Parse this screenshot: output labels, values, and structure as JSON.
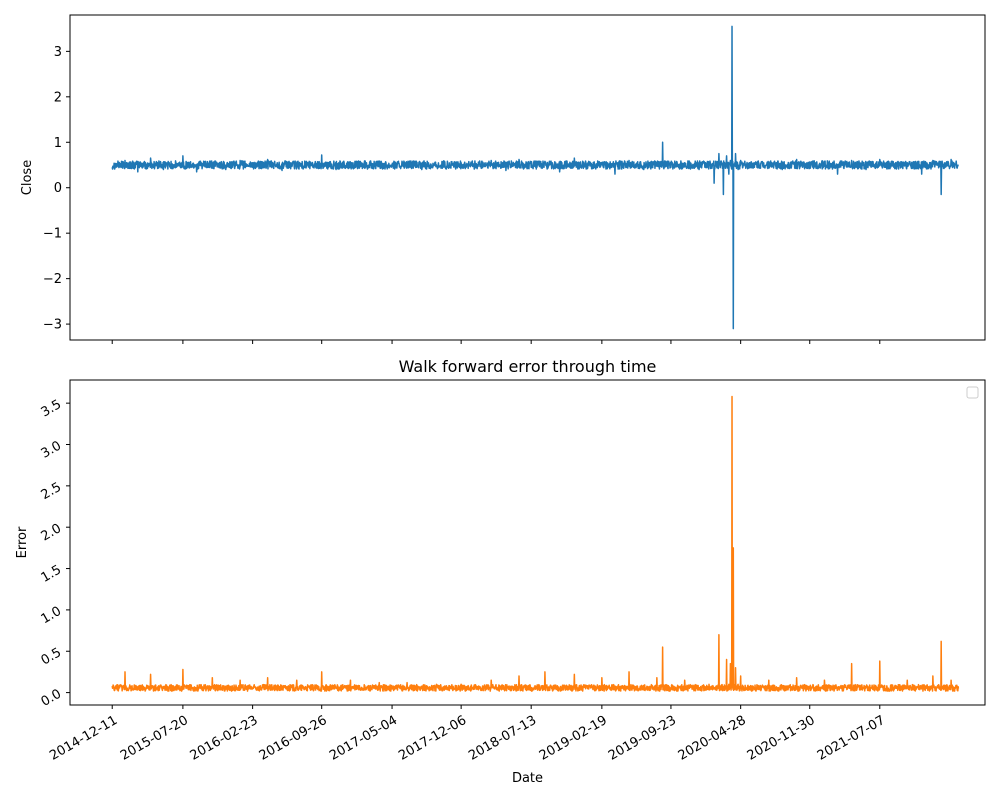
{
  "chart_data": [
    {
      "type": "line",
      "title": "",
      "xlabel": "",
      "ylabel": "Close",
      "ylim": [
        -3.35,
        3.8
      ],
      "yticks": [
        -3,
        -2,
        -1,
        0,
        1,
        2,
        3
      ],
      "xlim": [
        "2014-08-01",
        "2022-06-01"
      ],
      "xticks": [
        "2014-12-11",
        "2015-07-20",
        "2016-02-23",
        "2016-09-26",
        "2017-05-04",
        "2017-12-06",
        "2018-07-13",
        "2019-02-19",
        "2019-09-23",
        "2020-04-28",
        "2020-11-30",
        "2021-07-07"
      ],
      "x_tick_labels_visible": false,
      "grid": false,
      "color": "#1f77b4",
      "series": [
        {
          "x": [
            "2014-12-11",
            "2015-01-20",
            "2015-03-01",
            "2015-04-10",
            "2015-05-20",
            "2015-07-20",
            "2015-09-01",
            "2015-10-20",
            "2015-12-01",
            "2016-01-15",
            "2016-02-23",
            "2016-04-10",
            "2016-05-25",
            "2016-07-10",
            "2016-08-20",
            "2016-09-26",
            "2016-11-10",
            "2016-12-25",
            "2017-02-10",
            "2017-03-25",
            "2017-05-04",
            "2017-06-20",
            "2017-08-05",
            "2017-09-20",
            "2017-11-01",
            "2017-12-06",
            "2018-01-25",
            "2018-03-10",
            "2018-04-25",
            "2018-06-05",
            "2018-07-13",
            "2018-08-25",
            "2018-10-10",
            "2018-11-25",
            "2019-01-05",
            "2019-02-19",
            "2019-04-01",
            "2019-05-15",
            "2019-06-30",
            "2019-08-10",
            "2019-08-28",
            "2019-09-23",
            "2019-11-05",
            "2019-12-20",
            "2020-01-20",
            "2020-02-05",
            "2020-02-20",
            "2020-03-05",
            "2020-03-15",
            "2020-03-22",
            "2020-03-27",
            "2020-04-01",
            "2020-04-05",
            "2020-04-12",
            "2020-04-20",
            "2020-04-28",
            "2020-06-10",
            "2020-07-25",
            "2020-09-05",
            "2020-10-20",
            "2020-11-30",
            "2021-01-15",
            "2021-02-25",
            "2021-04-10",
            "2021-05-25",
            "2021-07-07",
            "2021-08-20",
            "2021-10-01",
            "2021-11-15",
            "2021-12-20",
            "2022-01-15",
            "2022-02-15",
            "2022-03-10"
          ],
          "y": [
            0.45,
            0.6,
            0.35,
            0.65,
            0.4,
            0.7,
            0.35,
            0.55,
            0.4,
            0.6,
            0.45,
            0.62,
            0.38,
            0.55,
            0.42,
            0.72,
            0.4,
            0.55,
            0.45,
            0.52,
            0.48,
            0.55,
            0.4,
            0.5,
            0.45,
            0.55,
            0.42,
            0.6,
            0.38,
            0.62,
            0.45,
            0.58,
            0.35,
            0.65,
            0.42,
            0.55,
            0.3,
            0.6,
            0.4,
            0.55,
            1.0,
            0.45,
            0.55,
            0.4,
            0.5,
            0.1,
            0.75,
            -0.15,
            0.7,
            0.3,
            0.6,
            3.55,
            -3.1,
            0.75,
            0.4,
            0.6,
            0.45,
            0.55,
            0.4,
            0.62,
            0.48,
            0.58,
            0.3,
            0.6,
            0.4,
            0.62,
            0.45,
            0.55,
            0.3,
            0.6,
            -0.15,
            0.62,
            0.5
          ]
        }
      ]
    },
    {
      "type": "line",
      "title": "Walk forward error through time",
      "xlabel": "Date",
      "ylabel": "Error",
      "ylim": [
        -0.15,
        3.78
      ],
      "yticks": [
        "0.0",
        "0.5",
        "1.0",
        "1.5",
        "2.0",
        "2.5",
        "3.0",
        "3.5"
      ],
      "xlim": [
        "2014-08-01",
        "2022-06-01"
      ],
      "xticks": [
        "2014-12-11",
        "2015-07-20",
        "2016-02-23",
        "2016-09-26",
        "2017-05-04",
        "2017-12-06",
        "2018-07-13",
        "2019-02-19",
        "2019-09-23",
        "2020-04-28",
        "2020-11-30",
        "2021-07-07"
      ],
      "grid": false,
      "legend": "top-right",
      "color": "#ff7f0e",
      "series": [
        {
          "x": [
            "2014-12-11",
            "2015-01-20",
            "2015-03-01",
            "2015-04-10",
            "2015-05-20",
            "2015-07-20",
            "2015-09-01",
            "2015-10-20",
            "2015-12-01",
            "2016-01-15",
            "2016-02-23",
            "2016-04-10",
            "2016-05-25",
            "2016-07-10",
            "2016-08-20",
            "2016-09-26",
            "2016-11-10",
            "2016-12-25",
            "2017-02-10",
            "2017-03-25",
            "2017-05-04",
            "2017-06-20",
            "2017-08-05",
            "2017-09-20",
            "2017-11-01",
            "2017-12-06",
            "2018-01-25",
            "2018-03-10",
            "2018-04-25",
            "2018-06-05",
            "2018-07-13",
            "2018-08-25",
            "2018-10-10",
            "2018-11-25",
            "2019-01-05",
            "2019-02-19",
            "2019-04-01",
            "2019-05-15",
            "2019-06-30",
            "2019-08-10",
            "2019-08-28",
            "2019-09-23",
            "2019-11-05",
            "2019-12-20",
            "2020-01-20",
            "2020-02-05",
            "2020-02-20",
            "2020-03-05",
            "2020-03-15",
            "2020-03-22",
            "2020-03-27",
            "2020-04-01",
            "2020-04-05",
            "2020-04-12",
            "2020-04-20",
            "2020-04-28",
            "2020-06-10",
            "2020-07-25",
            "2020-09-05",
            "2020-10-20",
            "2020-11-30",
            "2021-01-15",
            "2021-02-25",
            "2021-04-10",
            "2021-05-25",
            "2021-07-07",
            "2021-08-20",
            "2021-10-01",
            "2021-11-15",
            "2021-12-20",
            "2022-01-15",
            "2022-02-15",
            "2022-03-10"
          ],
          "y": [
            0.08,
            0.25,
            0.05,
            0.22,
            0.06,
            0.28,
            0.05,
            0.18,
            0.06,
            0.15,
            0.05,
            0.18,
            0.06,
            0.15,
            0.05,
            0.25,
            0.05,
            0.15,
            0.05,
            0.12,
            0.05,
            0.12,
            0.05,
            0.1,
            0.05,
            0.1,
            0.05,
            0.15,
            0.06,
            0.2,
            0.06,
            0.25,
            0.05,
            0.22,
            0.05,
            0.18,
            0.08,
            0.25,
            0.06,
            0.18,
            0.55,
            0.06,
            0.15,
            0.05,
            0.1,
            0.05,
            0.7,
            0.05,
            0.4,
            0.1,
            0.35,
            3.58,
            1.75,
            0.3,
            0.1,
            0.2,
            0.06,
            0.15,
            0.06,
            0.18,
            0.05,
            0.15,
            0.05,
            0.35,
            0.06,
            0.38,
            0.06,
            0.15,
            0.05,
            0.2,
            0.62,
            0.15,
            0.05
          ]
        }
      ]
    }
  ]
}
